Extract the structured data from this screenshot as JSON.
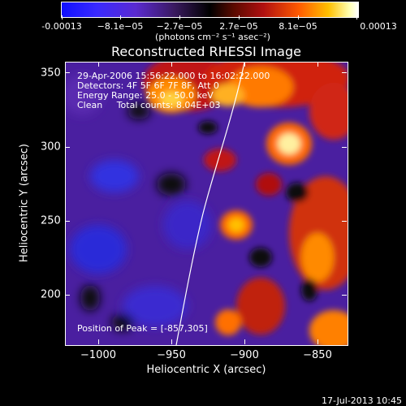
{
  "colorbar": {
    "labels": [
      "-0.00013",
      "−8.1e−05",
      "−2.7e−05",
      "2.7e−05",
      "8.1e−05",
      "0.00013"
    ],
    "units": "(photons cm⁻² s⁻¹ asec⁻²)"
  },
  "title": "Reconstructed RHESSI Image",
  "annotations": {
    "line1": "29-Apr-2006 15:56:22.000 to 16:02:22.000",
    "line2": "Detectors: 4F 5F 6F 7F 8F, Att 0",
    "line3": "Energy Range: 25.0 - 50.0 keV",
    "line4": "Clean     Total counts: 8.04E+03",
    "peak": "Position of Peak = [-857,305]"
  },
  "axes": {
    "xlabel": "Heliocentric X (arcsec)",
    "ylabel": "Heliocentric Y (arcsec)",
    "xticks": [
      "−1000",
      "−950",
      "−900",
      "−850"
    ],
    "yticks": [
      "350",
      "300",
      "250",
      "200"
    ]
  },
  "footer": "17-Jul-2013 10:45"
}
